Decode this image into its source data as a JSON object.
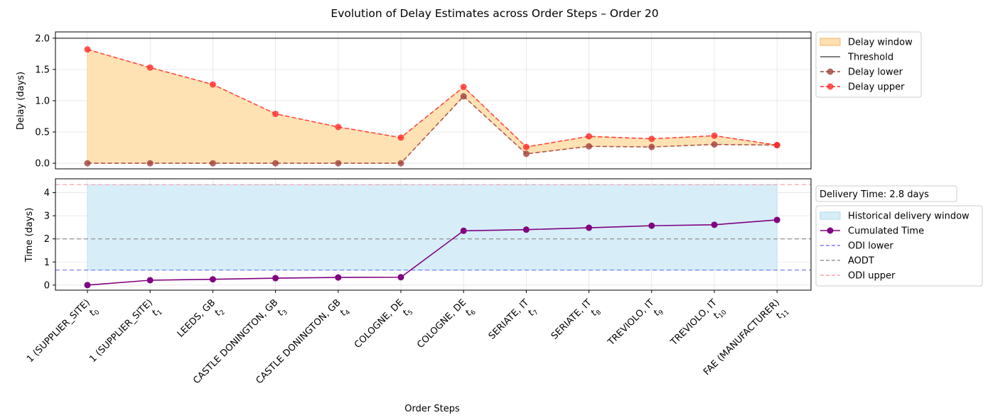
{
  "title": "Evolution of Delay Estimates across Order Steps – Order 20",
  "xlabel": "Order Steps",
  "steps": [
    {
      "label": "1 (SUPPLIER_SITE)",
      "t": "t",
      "sub": "0",
      "color": "#b22222"
    },
    {
      "label": "1 (SUPPLIER_SITE)",
      "t": "t",
      "sub": "1",
      "color": "#000000"
    },
    {
      "label": "LEEDS, GB",
      "t": "t",
      "sub": "2",
      "color": "#000000"
    },
    {
      "label": "CASTLE DONINGTON, GB",
      "t": "t",
      "sub": "3",
      "color": "#000000"
    },
    {
      "label": "CASTLE DONINGTON, GB",
      "t": "t",
      "sub": "4",
      "color": "#000000"
    },
    {
      "label": "COLOGNE, DE",
      "t": "t",
      "sub": "5",
      "color": "#000000"
    },
    {
      "label": "COLOGNE, DE",
      "t": "t",
      "sub": "6",
      "color": "#000000"
    },
    {
      "label": "SERIATE, IT",
      "t": "t",
      "sub": "7",
      "color": "#000000"
    },
    {
      "label": "SERIATE, IT",
      "t": "t",
      "sub": "8",
      "color": "#000000"
    },
    {
      "label": "TREVIOLO, IT",
      "t": "t",
      "sub": "9",
      "color": "#000000"
    },
    {
      "label": "TREVIOLO, IT",
      "t": "t",
      "sub": "10",
      "color": "#000000"
    },
    {
      "label": "FAE (MANUFACTURER)",
      "t": "t",
      "sub": "11",
      "color": "#3a8a1a"
    }
  ],
  "chart_data": [
    {
      "type": "line",
      "ylabel": "Delay (days)",
      "ylim": [
        -0.09,
        2.1
      ],
      "yticks": [
        "0.0",
        "0.5",
        "1.0",
        "1.5",
        "2.0"
      ],
      "grid": true,
      "legend_position": "outside right, top",
      "threshold": 2.0,
      "series": [
        {
          "name": "Delay lower",
          "color": "#a0403a",
          "style": "dashed",
          "marker": "circle",
          "values": [
            0.0,
            0.0,
            0.0,
            0.0,
            0.0,
            0.0,
            1.07,
            0.15,
            0.27,
            0.26,
            0.3,
            0.29
          ]
        },
        {
          "name": "Delay upper",
          "color": "#ff2a2a",
          "style": "dashed",
          "marker": "circle",
          "values": [
            1.82,
            1.53,
            1.26,
            0.79,
            0.58,
            0.41,
            1.22,
            0.26,
            0.43,
            0.39,
            0.44,
            0.29
          ]
        }
      ],
      "legend": [
        {
          "name": "Delay window",
          "kind": "fill",
          "color": "#ffe0b0",
          "edge": "#f5b26b"
        },
        {
          "name": "Threshold",
          "kind": "line",
          "color": "#555555"
        },
        {
          "name": "Delay lower",
          "kind": "dashmarker",
          "color": "#a0403a"
        },
        {
          "name": "Delay upper",
          "kind": "dashmarker",
          "color": "#ff2a2a"
        }
      ]
    },
    {
      "type": "line",
      "ylabel": "Time (days)",
      "ylim": [
        -0.22,
        4.6
      ],
      "yticks": [
        "0",
        "1",
        "2",
        "3",
        "4"
      ],
      "grid": true,
      "legend_position": "outside right",
      "annotation": "Delivery Time: 2.8 days",
      "historical_window": [
        0.65,
        4.35
      ],
      "odi_lower": 0.65,
      "aodt": 2.0,
      "odi_upper": 4.35,
      "series": [
        {
          "name": "Cumulated Time",
          "color": "#800080",
          "style": "solid",
          "marker": "circle",
          "values": [
            0.0,
            0.21,
            0.25,
            0.3,
            0.33,
            0.34,
            2.35,
            2.4,
            2.48,
            2.57,
            2.61,
            2.82
          ]
        }
      ],
      "legend": [
        {
          "name": "Historical delivery window",
          "kind": "fill",
          "color": "#d7eef8",
          "edge": "#a9d8ee"
        },
        {
          "name": "Cumulated Time",
          "kind": "solidmarker",
          "color": "#800080"
        },
        {
          "name": "ODI lower",
          "kind": "dash",
          "color": "#7b7bff"
        },
        {
          "name": "AODT",
          "kind": "dash",
          "color": "#999999"
        },
        {
          "name": "ODI upper",
          "kind": "dash",
          "color": "#ffa0a8"
        }
      ]
    }
  ]
}
